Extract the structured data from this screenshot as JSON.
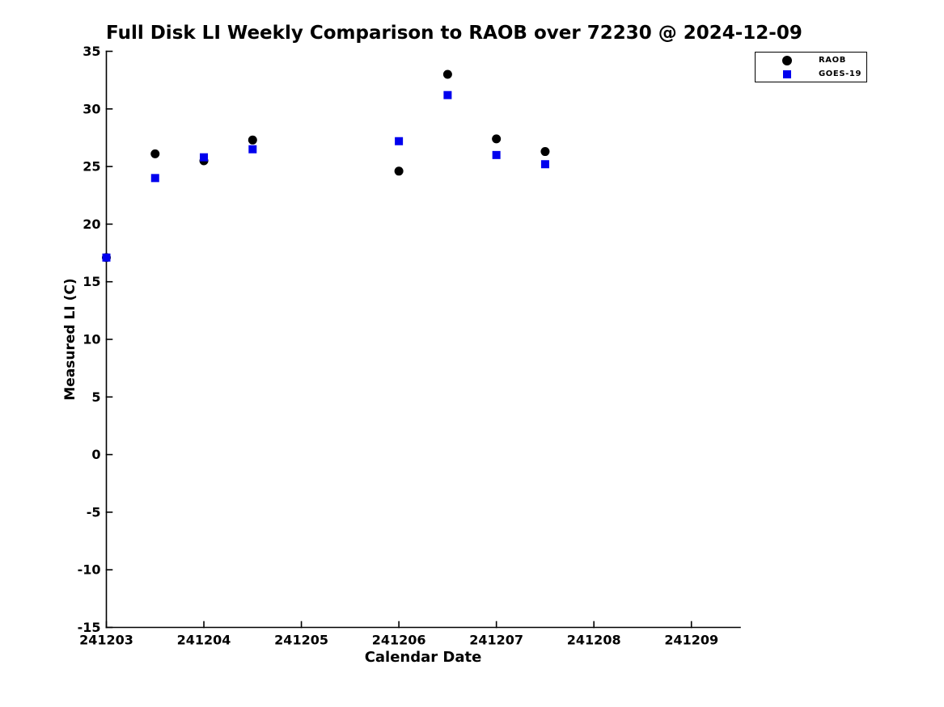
{
  "chart_data": {
    "type": "scatter",
    "title": "Full Disk LI Weekly Comparison to RAOB over 72230 @ 2024-12-09",
    "xlabel": "Calendar Date",
    "ylabel": "Measured LI (C)",
    "xlim": [
      241203,
      241209.5
    ],
    "ylim": [
      -15,
      35
    ],
    "x_ticks": [
      241203,
      241204,
      241205,
      241206,
      241207,
      241208,
      241209
    ],
    "y_ticks": [
      35,
      30,
      25,
      20,
      15,
      10,
      5,
      0,
      -5,
      -10,
      -15
    ],
    "grid": false,
    "legend_position": "top-right",
    "x": [
      241203,
      241203.5,
      241204,
      241204.5,
      241206,
      241206.5,
      241207,
      241207.5
    ],
    "series": [
      {
        "name": "RAOB",
        "marker": "circle",
        "color": "#000000",
        "values": [
          17.1,
          26.1,
          25.5,
          27.3,
          24.6,
          33.0,
          27.4,
          26.3
        ]
      },
      {
        "name": "GOES-19",
        "marker": "square",
        "color": "#0000ee",
        "values": [
          17.1,
          24.0,
          25.8,
          26.5,
          27.2,
          31.2,
          26.0,
          25.2
        ]
      }
    ]
  }
}
